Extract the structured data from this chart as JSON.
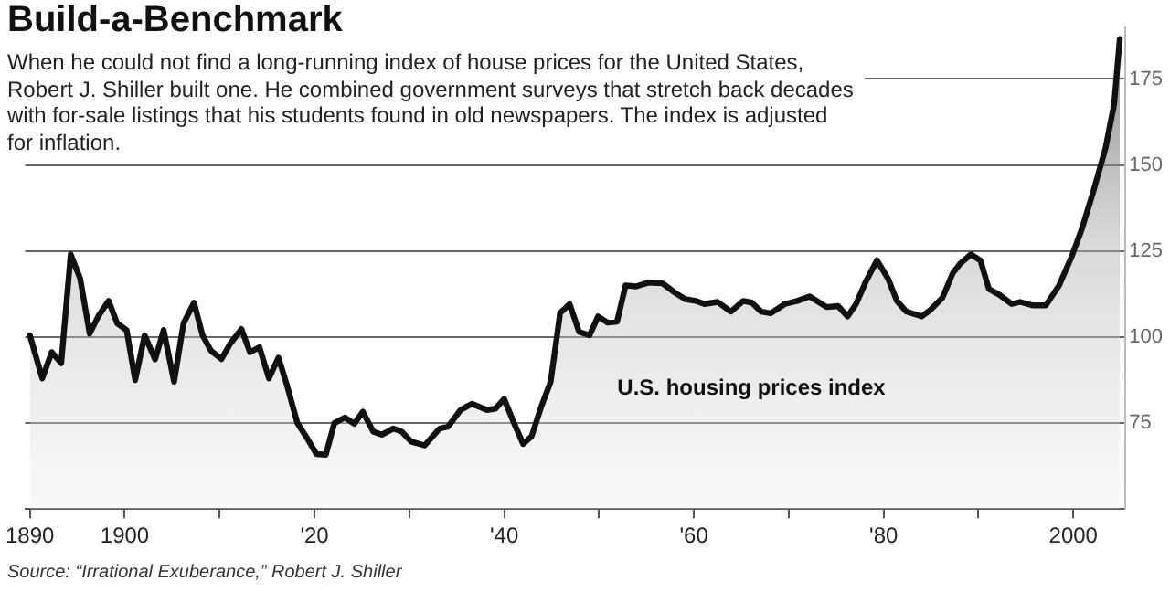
{
  "chart_data": {
    "type": "area",
    "title": "Build-a-Benchmark",
    "subtitle": "When he could not find a long-running index of house prices for the United States, Robert J. Shiller built one. He combined government surveys that stretch back decades with for-sale listings that his students found in old newspapers. The index is adjusted for inflation.",
    "annotations": [
      "Source: “Irrational Exuberance,” Robert J. Shiller"
    ],
    "x": [
      1890,
      1891.3,
      1892.3,
      1893.3,
      1894.3,
      1895.3,
      1896.3,
      1897.2,
      1898.3,
      1899.2,
      1900.2,
      1901.1,
      1902.1,
      1903.2,
      1904.1,
      1905.2,
      1906.2,
      1907.3,
      1908.2,
      1909.1,
      1910.2,
      1911.1,
      1912.3,
      1913.2,
      1914.2,
      1915.2,
      1916.2,
      1917.1,
      1918.2,
      1919.2,
      1920.2,
      1921.2,
      1922.1,
      1923.2,
      1924.2,
      1925.1,
      1926.2,
      1927.1,
      1928.3,
      1929.2,
      1930.2,
      1931.6,
      1933.2,
      1934.1,
      1935.4,
      1936.6,
      1938.2,
      1939.1,
      1940,
      1941,
      1942,
      1942.9,
      1943.9,
      1944.9,
      1945.9,
      1946.9,
      1947.9,
      1949,
      1949.9,
      1950.9,
      1951.9,
      1952.8,
      1953.9,
      1955.2,
      1956.7,
      1958,
      1959.1,
      1960.2,
      1961.1,
      1962.5,
      1963.9,
      1965.2,
      1966.1,
      1967.1,
      1968.1,
      1969.6,
      1970.9,
      1972.2,
      1974,
      1975.2,
      1976.2,
      1977.1,
      1978.1,
      1979.3,
      1980.5,
      1981.4,
      1982.4,
      1984,
      1984.9,
      1986.2,
      1987.3,
      1988.1,
      1989.2,
      1990.2,
      1991.1,
      1992.2,
      1993.5,
      1994.4,
      1995.7,
      1997.1,
      1998.5,
      1999.8,
      2000.9,
      2002.1,
      2003.4,
      2004.3,
      2004.9
    ],
    "series": [
      {
        "name": "U.S. housing prices index",
        "color": "#111111",
        "values": [
          100.5,
          88,
          95.6,
          92.4,
          124,
          117,
          101,
          106,
          110.5,
          104,
          102,
          87.5,
          100.5,
          93.5,
          102,
          87,
          104,
          110,
          100.5,
          96,
          93.6,
          98,
          102.3,
          95.6,
          97,
          88,
          94,
          86,
          75,
          70.7,
          66,
          65.8,
          75,
          76.6,
          74.8,
          78.3,
          72.5,
          71.6,
          73.4,
          72.5,
          69.6,
          68.5,
          73.4,
          74,
          78.8,
          80.6,
          78.8,
          79.2,
          82,
          75.2,
          68.9,
          71.2,
          79.7,
          87,
          107,
          109.6,
          101.5,
          100.5,
          106,
          104.2,
          104.5,
          115,
          114.7,
          115.8,
          115.6,
          112.9,
          111,
          110.5,
          109.6,
          110.2,
          107.4,
          110.5,
          110,
          107.4,
          106.9,
          109.6,
          110.5,
          111.8,
          108.7,
          109,
          106,
          109.6,
          116,
          122.3,
          116.8,
          110.5,
          107.4,
          106,
          107.8,
          111.4,
          118.6,
          121.4,
          124,
          122.3,
          114,
          112.3,
          109.6,
          110.2,
          109.2,
          109.2,
          115,
          123.2,
          131.4,
          142.2,
          154.9,
          167.6,
          186.6
        ]
      }
    ],
    "xlim": [
      1889.5,
      2005.5
    ],
    "xticks": [
      {
        "value": 1890,
        "label": "1890"
      },
      {
        "value": 1900,
        "label": "1900"
      },
      {
        "value": 1910,
        "label": null
      },
      {
        "value": 1920,
        "label": "'20"
      },
      {
        "value": 1930,
        "label": null
      },
      {
        "value": 1940,
        "label": "'40"
      },
      {
        "value": 1950,
        "label": null
      },
      {
        "value": 1960,
        "label": "'60"
      },
      {
        "value": 1970,
        "label": null
      },
      {
        "value": 1980,
        "label": "'80"
      },
      {
        "value": 1990,
        "label": null
      },
      {
        "value": 2000,
        "label": "2000"
      }
    ],
    "ylim": [
      50,
      190
    ],
    "yticks": [
      75,
      100,
      125,
      150,
      175
    ],
    "grid": "y",
    "legend": false,
    "marker": "none",
    "line_style": "solid"
  }
}
